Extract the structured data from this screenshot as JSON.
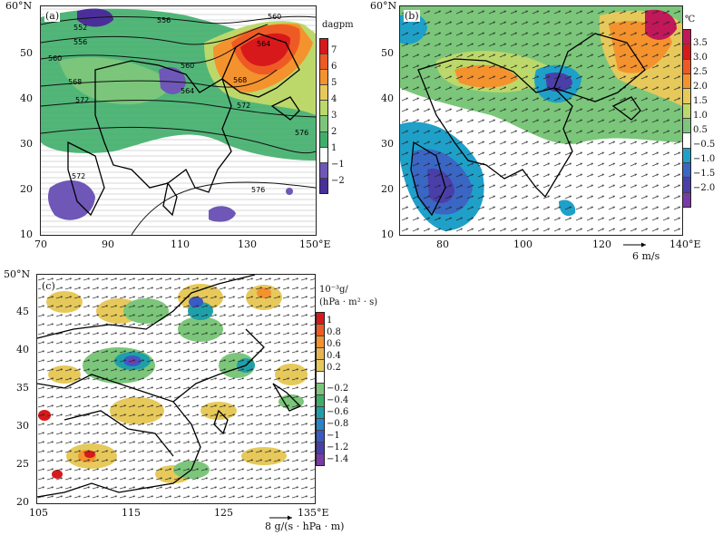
{
  "panel_a": {
    "label": "(a)",
    "unit": "dagpm",
    "y_ticks": [
      "60°N",
      "50",
      "40",
      "30",
      "20",
      "10"
    ],
    "x_ticks": [
      "70",
      "90",
      "110",
      "130",
      "150°E"
    ],
    "colorbar_labels": [
      "7",
      "6",
      "5",
      "4",
      "3",
      "2",
      "1",
      "−1",
      "−2"
    ],
    "colorbar_colors": [
      "#d7191c",
      "#ee5a24",
      "#f4922e",
      "#e6c95a",
      "#bcd86a",
      "#7bc67a",
      "#3fae6a",
      "#ffffff",
      "#6f57b8",
      "#4a2f9a"
    ],
    "contour_labels": [
      "552",
      "556",
      "556",
      "560",
      "560",
      "560",
      "564",
      "564",
      "568",
      "568",
      "572",
      "572",
      "572",
      "576",
      "576"
    ]
  },
  "panel_b": {
    "label": "(b)",
    "unit": "℃",
    "y_ticks": [
      "60°N",
      "50",
      "40",
      "30",
      "20",
      "10"
    ],
    "x_ticks": [
      "80",
      "100",
      "120",
      "140°E"
    ],
    "colorbar_labels": [
      "3.5",
      "3.0",
      "2.5",
      "2.0",
      "1.5",
      "1.0",
      "0.5",
      "−0.5",
      "−1.0",
      "−1.5",
      "−2.0"
    ],
    "colorbar_colors": [
      "#c1185a",
      "#d7191c",
      "#ee5a24",
      "#f4922e",
      "#e6c95a",
      "#bcd86a",
      "#7bc67a",
      "#ffffff",
      "#1fa0c9",
      "#3a66c4",
      "#4a3fa8",
      "#7a3aa8"
    ],
    "reference_vector": "6 m/s"
  },
  "panel_c": {
    "label": "(c)",
    "unit_line1": "10⁻³g/",
    "unit_line2": "(hPa · m² · s)",
    "y_ticks": [
      "50°N",
      "45",
      "40",
      "35",
      "30",
      "25",
      "20"
    ],
    "x_ticks": [
      "105",
      "115",
      "125",
      "135°E"
    ],
    "colorbar_labels": [
      "1",
      "0.8",
      "0.6",
      "0.4",
      "0.2",
      "−0.2",
      "−0.4",
      "−0.6",
      "−0.8",
      "−1",
      "−1.2",
      "−1.4"
    ],
    "colorbar_colors": [
      "#d7191c",
      "#ee5a24",
      "#f4922e",
      "#e6b450",
      "#e6c95a",
      "#ffffff",
      "#7bc67a",
      "#3fae6a",
      "#1fa0a9",
      "#2a84c9",
      "#3a5ac4",
      "#4a3fa8",
      "#7a3aa8"
    ],
    "reference_vector": "8 g/(s · hPa · m)"
  }
}
